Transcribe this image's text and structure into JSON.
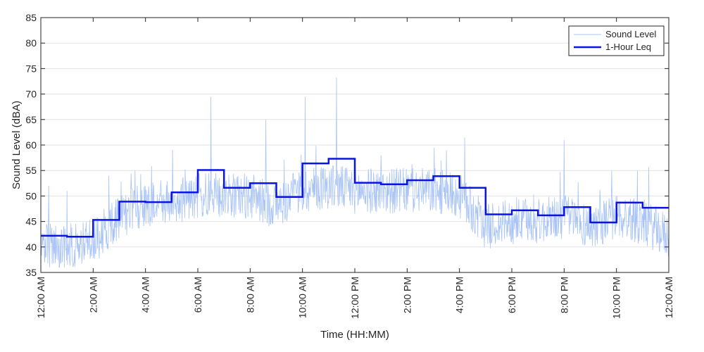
{
  "chart_data": {
    "type": "line",
    "xlabel": "Time (HH:MM)",
    "ylabel": "Sound Level (dBA)",
    "ylim": [
      35,
      85
    ],
    "yticks": [
      35,
      40,
      45,
      50,
      55,
      60,
      65,
      70,
      75,
      80,
      85
    ],
    "xlim": [
      0,
      24
    ],
    "xtick_hours": [
      0,
      2,
      4,
      6,
      8,
      10,
      12,
      14,
      16,
      18,
      20,
      22,
      24
    ],
    "xtick_labels": [
      "12:00 AM",
      "2:00 AM",
      "4:00 AM",
      "6:00 AM",
      "8:00 AM",
      "10:00 AM",
      "12:00 PM",
      "2:00 PM",
      "4:00 PM",
      "6:00 PM",
      "8:00 PM",
      "10:00 PM",
      "12:00 AM"
    ],
    "grid": "horizontal",
    "legend_position": "top-right",
    "series": [
      {
        "name": "Sound Level",
        "color": "#a9c4f5",
        "style": "thin-line",
        "baseline": [
          [
            0,
            40
          ],
          [
            1,
            40
          ],
          [
            2,
            41
          ],
          [
            3,
            46
          ],
          [
            4,
            48
          ],
          [
            5,
            49
          ],
          [
            6,
            50
          ],
          [
            7,
            50
          ],
          [
            8,
            50
          ],
          [
            9,
            48
          ],
          [
            10,
            51
          ],
          [
            11,
            52
          ],
          [
            12,
            51
          ],
          [
            13,
            51
          ],
          [
            14,
            51
          ],
          [
            15,
            51
          ],
          [
            16,
            50
          ],
          [
            17,
            44
          ],
          [
            18,
            45
          ],
          [
            19,
            45
          ],
          [
            20,
            46
          ],
          [
            21,
            44
          ],
          [
            22,
            46
          ],
          [
            23,
            45
          ],
          [
            24,
            42
          ]
        ],
        "spikes": [
          [
            0.3,
            52
          ],
          [
            1.0,
            51
          ],
          [
            2.6,
            54
          ],
          [
            3.6,
            55
          ],
          [
            6.5,
            69.5
          ],
          [
            8.6,
            65
          ],
          [
            10.1,
            69.5
          ],
          [
            11.3,
            73.3
          ],
          [
            13.0,
            58
          ],
          [
            15.5,
            59
          ],
          [
            16.2,
            61.5
          ],
          [
            20.0,
            61
          ],
          [
            22.8,
            55
          ]
        ]
      },
      {
        "name": "1-Hour Leq",
        "color": "#0a14e6",
        "style": "step",
        "hourly_values": [
          42.2,
          42.0,
          45.3,
          48.9,
          48.8,
          50.7,
          55.1,
          51.6,
          52.5,
          49.8,
          56.4,
          57.3,
          52.6,
          52.3,
          53.1,
          53.9,
          51.6,
          46.4,
          47.2,
          46.2,
          47.8,
          44.8,
          48.7,
          47.7
        ]
      }
    ]
  }
}
